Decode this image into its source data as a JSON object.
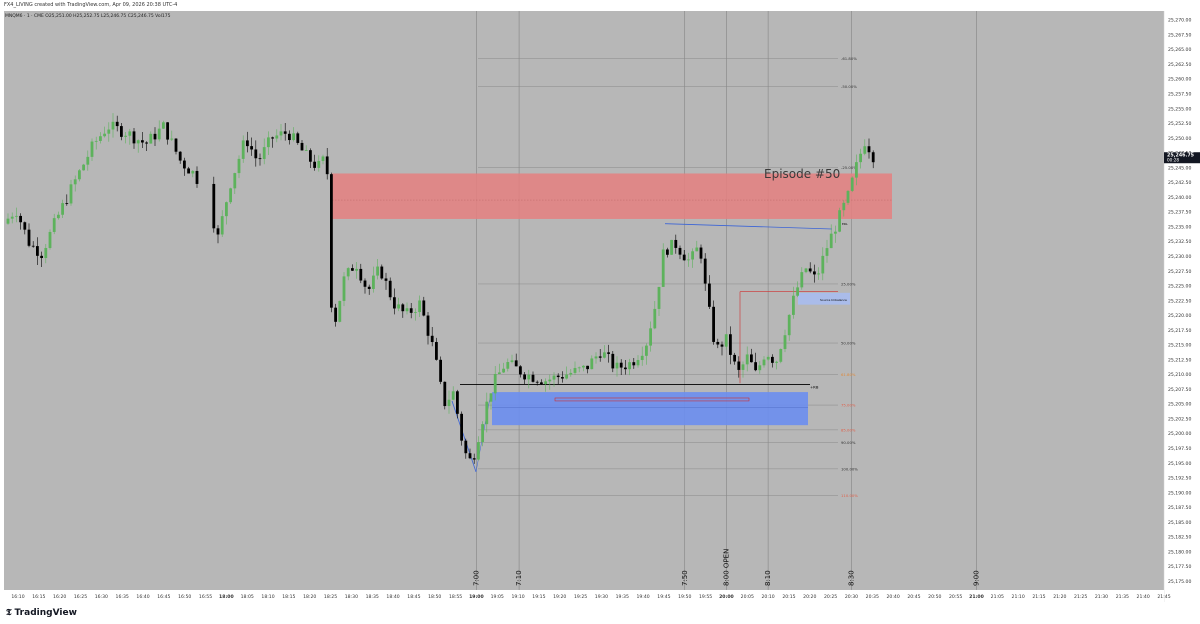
{
  "header": {
    "title": "FX4_LIVING created with TradingView.com, Apr 09, 2026 20:38 UTC-4"
  },
  "legend": {
    "text": "MNQM6 · 1 · CME  O25,251.00  H25,252.75  L25,246.75  C25,246.75  Vol175"
  },
  "brand": {
    "name": "TradingView",
    "logo_icon": "tradingview-logo-icon"
  },
  "colors": {
    "background": "#b7b7b7",
    "up_candle": "#5db25c",
    "down_candle": "#000000",
    "supply_zone": "#e58080",
    "demand_zone": "#6c8ef0",
    "grid_line": "#8a8a8a"
  },
  "chart_data": {
    "type": "candlestick",
    "symbol": "MNQM6",
    "interval": "1",
    "exchange": "CME",
    "ylim": [
      25173.5,
      25271.5
    ],
    "y_ticks": [
      "25,270.00",
      "25,267.50",
      "25,265.00",
      "25,262.50",
      "25,260.00",
      "25,257.50",
      "25,255.00",
      "25,252.50",
      "25,250.00",
      "25,247.50",
      "25,245.00",
      "25,242.50",
      "25,240.00",
      "25,237.50",
      "25,235.00",
      "25,232.50",
      "25,230.00",
      "25,227.50",
      "25,225.00",
      "25,222.50",
      "25,220.00",
      "25,217.50",
      "25,215.00",
      "25,212.50",
      "25,210.00",
      "25,207.50",
      "25,205.00",
      "25,202.50",
      "25,200.00",
      "25,197.50",
      "25,195.00",
      "25,192.50",
      "25,190.00",
      "25,187.50",
      "25,185.00",
      "25,182.50",
      "25,180.00",
      "25,177.50",
      "25,175.00"
    ],
    "x_ticks": [
      "16:10",
      "16:15",
      "16:20",
      "16:25",
      "16:30",
      "16:35",
      "16:40",
      "16:45",
      "16:50",
      "16:55",
      "18:00",
      "18:05",
      "18:10",
      "18:15",
      "18:20",
      "18:25",
      "18:30",
      "18:35",
      "18:40",
      "18:45",
      "18:50",
      "18:55",
      "19:00",
      "19:05",
      "19:10",
      "19:15",
      "19:20",
      "19:25",
      "19:30",
      "19:35",
      "19:40",
      "19:45",
      "19:50",
      "19:55",
      "20:00",
      "20:05",
      "20:10",
      "20:15",
      "20:20",
      "20:25",
      "20:30",
      "20:35",
      "20:40",
      "20:45",
      "20:50",
      "20:55",
      "21:00",
      "21:05",
      "21:10",
      "21:15",
      "21:20",
      "21:25",
      "21:30",
      "21:35",
      "21:40",
      "21:45"
    ],
    "bold_x_ticks": [
      "18:00",
      "19:00",
      "20:00",
      "21:00"
    ],
    "last_price": "25,246.75",
    "countdown": "00:28",
    "vertical_markers": [
      {
        "label": "7:00",
        "x_time": "19:00"
      },
      {
        "label": "7:10",
        "x_time": "19:10"
      },
      {
        "label": "7:50",
        "x_time": "19:50"
      },
      {
        "label": "8:00 OPEN",
        "x_time": "20:00"
      },
      {
        "label": "8:10",
        "x_time": "20:10"
      },
      {
        "label": "8:30",
        "x_time": "20:30"
      },
      {
        "label": "9:00",
        "x_time": "21:00"
      }
    ],
    "annotation_title": "Episode #50",
    "fib_levels": [
      {
        "label": "-61.80%",
        "price": 25263.5
      },
      {
        "label": "-50.00%",
        "price": 25258.7
      },
      {
        "label": "-25.00%",
        "price": 25245.0
      },
      {
        "label": "25.00%",
        "price": 25225.3
      },
      {
        "label": "50.00%",
        "price": 25215.3
      },
      {
        "label": "61.80%",
        "price": 25210.0,
        "color": "#e08a3a"
      },
      {
        "label": "75.00%",
        "price": 25204.8,
        "color": "#e0604a"
      },
      {
        "label": "85.00%",
        "price": 25200.6,
        "color": "#e0604a"
      },
      {
        "label": "90.00%",
        "price": 25198.5
      },
      {
        "label": "100.00%",
        "price": 25194.0
      },
      {
        "label": "110.00%",
        "price": 25189.5,
        "color": "#e0604a"
      }
    ],
    "zone_labels": [
      "Source Imbalance",
      "ERL",
      "+RB"
    ],
    "candles": []
  }
}
